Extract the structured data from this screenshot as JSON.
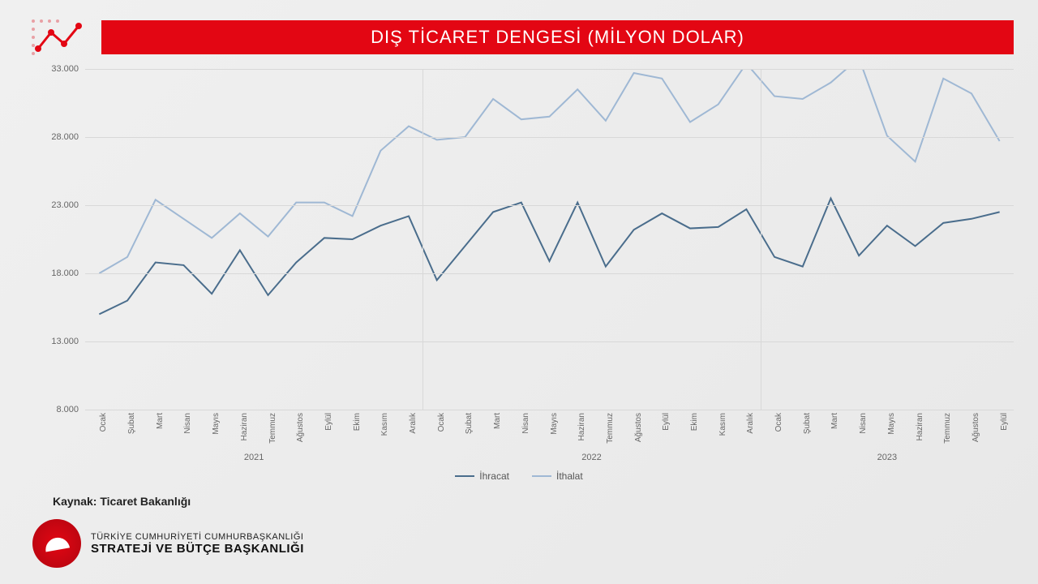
{
  "title": "DIŞ TİCARET DENGESİ (MİLYON DOLAR)",
  "source": "Kaynak: Ticaret Bakanlığı",
  "org": {
    "line1": "TÜRKİYE CUMHURİYETİ CUMHURBAŞKANLIĞI",
    "line2": "STRATEJİ VE BÜTÇE BAŞKANLIĞI"
  },
  "chart": {
    "type": "line",
    "ylim": [
      8000,
      33000
    ],
    "ytick_step": 5000,
    "y_tick_labels": [
      "8.000",
      "13.000",
      "18.000",
      "23.000",
      "28.000",
      "33.000"
    ],
    "background_color": "transparent",
    "grid_color": "#d8d8d8",
    "line_width": 2,
    "months_2021": [
      "Ocak",
      "Şubat",
      "Mart",
      "Nisan",
      "Mayıs",
      "Haziran",
      "Temmuz",
      "Ağustos",
      "Eylül",
      "Ekim",
      "Kasım",
      "Aralık"
    ],
    "months_2022": [
      "Ocak",
      "Şubat",
      "Mart",
      "Nisan",
      "Mayıs",
      "Haziran",
      "Temmuz",
      "Ağustos",
      "Eylül",
      "Ekim",
      "Kasım",
      "Aralık"
    ],
    "months_2023": [
      "Ocak",
      "Şubat",
      "Mart",
      "Nisan",
      "Mayıs",
      "Haziran",
      "Temmuz",
      "Ağustos",
      "Eylül"
    ],
    "year_labels": [
      "2021",
      "2022",
      "2023"
    ],
    "year_centers_idx": [
      5.5,
      17.5,
      28
    ],
    "label_fontsize": 11,
    "series": [
      {
        "name": "İhracat",
        "color": "#4a6d8c",
        "values": [
          15000,
          16000,
          18800,
          18600,
          16500,
          19700,
          16400,
          18800,
          20600,
          20500,
          21500,
          22200,
          17500,
          20000,
          22500,
          23200,
          18900,
          23200,
          18500,
          21200,
          22400,
          21300,
          21400,
          22700,
          19200,
          18500,
          23500,
          19300,
          21500,
          20000,
          21700,
          22000,
          22500
        ]
      },
      {
        "name": "İthalat",
        "color": "#9fb8d4",
        "values": [
          18000,
          19200,
          23400,
          22000,
          20600,
          22400,
          20700,
          23200,
          23200,
          22200,
          27000,
          28800,
          27800,
          28000,
          30800,
          29300,
          29500,
          31500,
          29200,
          32700,
          32300,
          29100,
          30400,
          33400,
          31000,
          30800,
          32000,
          33800,
          28100,
          26200,
          32300,
          31200,
          27700
        ]
      }
    ]
  },
  "colors": {
    "title_bg": "#e30613",
    "title_text": "#ffffff",
    "decor_primary": "#e30613",
    "decor_dots": "#e8a0a5"
  }
}
